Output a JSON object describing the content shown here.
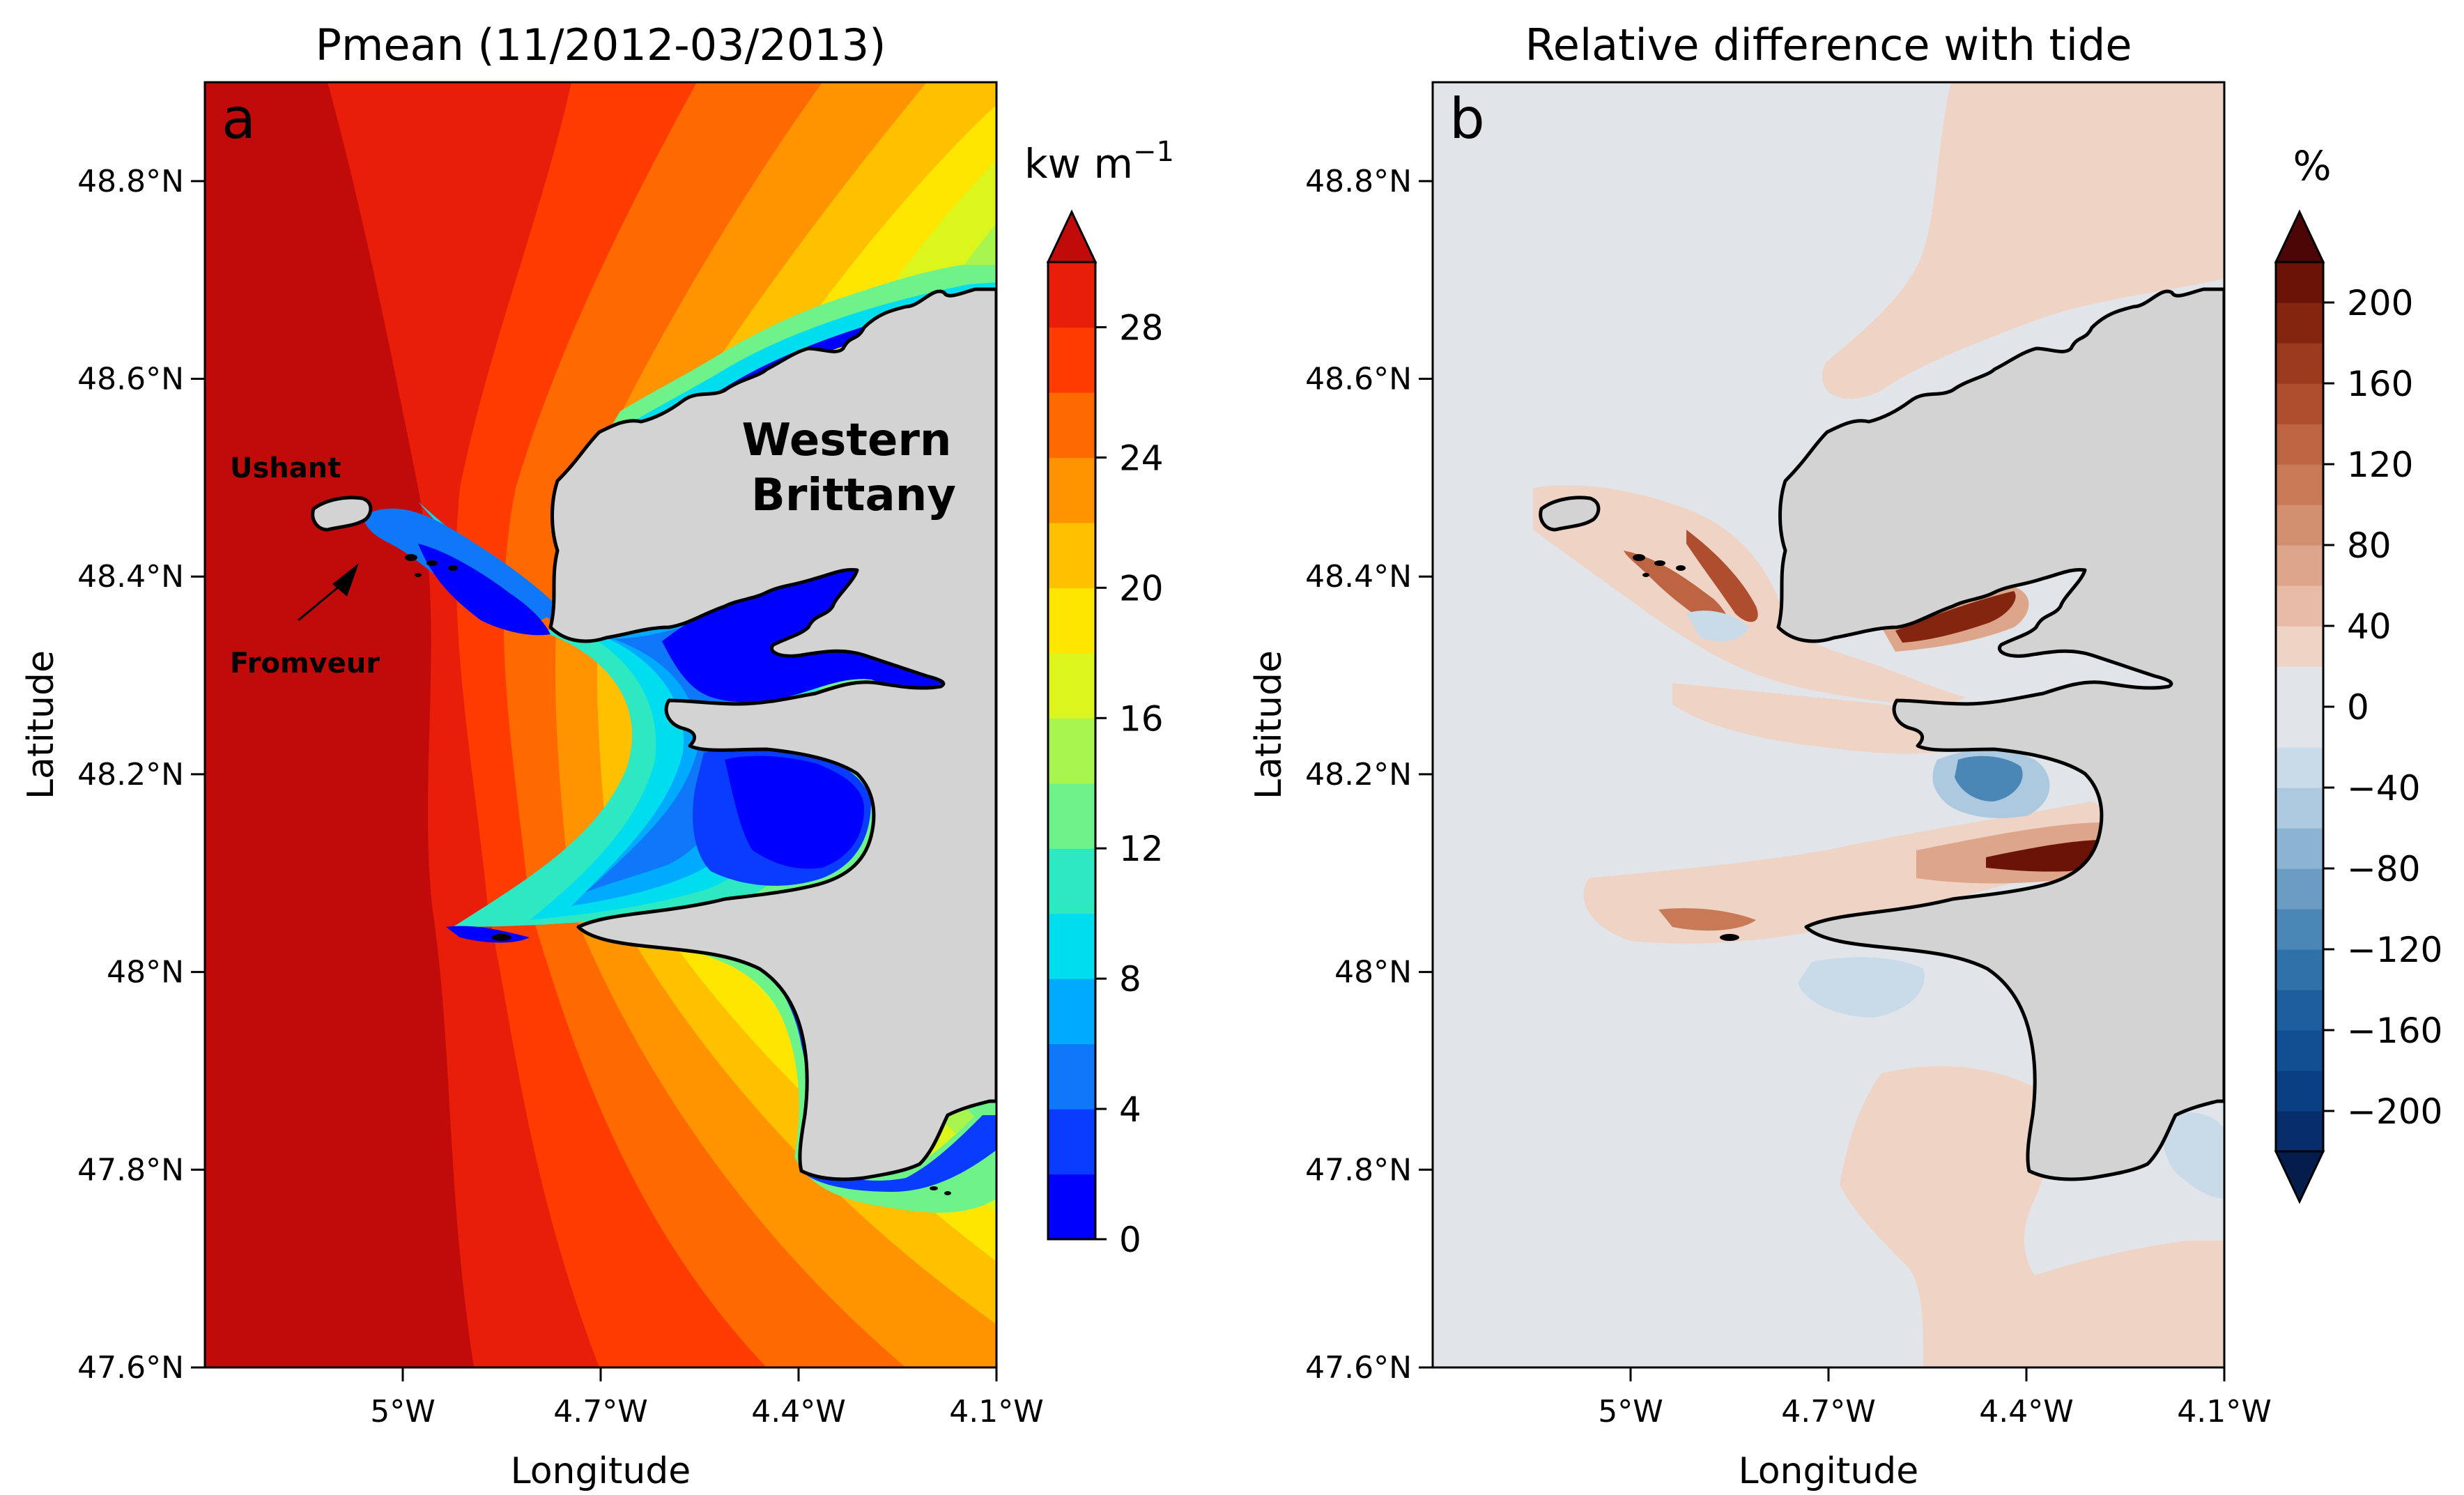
{
  "chart_data": [
    {
      "type": "heatmap",
      "panel_label": "a",
      "title": "Pmean (11/2012-03/2013)",
      "xlabel": "Longitude",
      "ylabel": "Latitude",
      "x_ticks": [
        "5°W",
        "4.7°W",
        "4.4°W",
        "4.1°W"
      ],
      "y_ticks": [
        "48.8°N",
        "48.6°N",
        "48.4°N",
        "48.2°N",
        "48°N",
        "47.8°N",
        "47.6°N"
      ],
      "xlim": [
        -5.3,
        -4.1
      ],
      "ylim": [
        47.6,
        48.9
      ],
      "colorbar": {
        "unit": "kw m",
        "unit_sup": "−1",
        "tick_labels": [
          "0",
          "4",
          "8",
          "12",
          "16",
          "20",
          "24",
          "28"
        ],
        "levels": [
          0,
          2,
          4,
          6,
          8,
          10,
          12,
          14,
          16,
          18,
          20,
          22,
          24,
          26,
          28,
          30
        ],
        "extend": "max",
        "colors": [
          "#0000ff",
          "#0a3cff",
          "#0f78f8",
          "#00aaff",
          "#00ddee",
          "#2ee8c2",
          "#6ef28a",
          "#a8f54f",
          "#dcf51c",
          "#ffe600",
          "#ffc000",
          "#ff9400",
          "#ff6a00",
          "#ff3c00",
          "#e81d0a"
        ],
        "extend_color": "#c10a0a"
      },
      "annotations": {
        "ushant": "Ushant",
        "fromveur": "Fromveur",
        "region_line1": "Western",
        "region_line2": "Brittany"
      }
    },
    {
      "type": "heatmap",
      "panel_label": "b",
      "title": "Relative difference with tide",
      "xlabel": "Longitude",
      "ylabel": "Latitude",
      "x_ticks": [
        "5°W",
        "4.7°W",
        "4.4°W",
        "4.1°W"
      ],
      "y_ticks": [
        "48.8°N",
        "48.6°N",
        "48.4°N",
        "48.2°N",
        "48°N",
        "47.8°N",
        "47.6°N"
      ],
      "xlim": [
        -5.3,
        -4.1
      ],
      "ylim": [
        47.6,
        48.9
      ],
      "colorbar": {
        "unit": "%",
        "tick_labels": [
          "200",
          "160",
          "120",
          "80",
          "40",
          "0",
          "−40",
          "−80",
          "−120",
          "−160",
          "−200"
        ],
        "levels": [
          -220,
          -200,
          -180,
          -160,
          -140,
          -120,
          -100,
          -80,
          -60,
          -40,
          -20,
          20,
          40,
          60,
          80,
          100,
          120,
          140,
          160,
          180,
          200,
          220
        ],
        "extend": "both",
        "colors": [
          "#072d6b",
          "#0a3f82",
          "#124f92",
          "#1d5f9e",
          "#2f72aa",
          "#4a86b6",
          "#6a9cc4",
          "#8bb3d2",
          "#adc9df",
          "#c9dbe8",
          "#e1e5ea",
          "#efd3c5",
          "#e7bba6",
          "#dda68a",
          "#d39070",
          "#c87a57",
          "#bd6442",
          "#ae4e2e",
          "#9b3a1e",
          "#84260f",
          "#6a1306"
        ],
        "extend_low": "#051d4d",
        "extend_high": "#4c0606"
      }
    }
  ],
  "colors": {
    "land": "#d3d3d3",
    "sea_zero": "#e1e5ea",
    "coast": "#000000"
  }
}
